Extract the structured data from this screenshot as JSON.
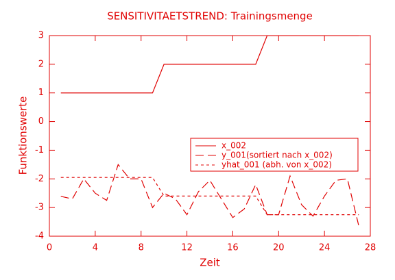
{
  "chart_data": {
    "type": "line",
    "title": "SENSITIVITAETSTREND: Trainingsmenge",
    "x_label": "Zeit",
    "y_label": "Funktionswerte",
    "x": [
      1,
      2,
      3,
      4,
      5,
      6,
      7,
      8,
      9,
      10,
      11,
      12,
      13,
      14,
      15,
      16,
      17,
      18,
      19,
      20,
      21,
      22,
      23,
      24,
      25,
      26,
      27
    ],
    "series": [
      {
        "name": "x_002",
        "color": "#e00000",
        "dash": "solid",
        "values": [
          1,
          1,
          1,
          1,
          1,
          1,
          1,
          1,
          1,
          2,
          2,
          2,
          2,
          2,
          2,
          2,
          2,
          2,
          3,
          3,
          3,
          3,
          3,
          3,
          3,
          3,
          3
        ]
      },
      {
        "name": "y_001(sortiert nach x_002)",
        "color": "#e00000",
        "dash": "long",
        "values": [
          -2.61,
          -2.7,
          -2.0,
          -2.5,
          -2.75,
          -1.5,
          -2.0,
          -2.0,
          -3.0,
          -2.5,
          -2.7,
          -3.25,
          -2.45,
          -2.05,
          -2.7,
          -3.35,
          -3.05,
          -2.2,
          -3.25,
          -3.25,
          -1.9,
          -2.9,
          -3.3,
          -2.6,
          -2.05,
          -2.0,
          -3.65
        ]
      },
      {
        "name": "yhat_001 (abh. von x_002)",
        "color": "#e00000",
        "dash": "short",
        "values": [
          -1.95,
          -1.95,
          -1.95,
          -1.95,
          -1.95,
          -1.95,
          -1.95,
          -1.95,
          -1.95,
          -2.6,
          -2.6,
          -2.6,
          -2.6,
          -2.6,
          -2.6,
          -2.6,
          -2.6,
          -2.6,
          -3.25,
          -3.25,
          -3.25,
          -3.25,
          -3.25,
          -3.25,
          -3.25,
          -3.25,
          -3.25
        ]
      }
    ],
    "xlim": [
      0,
      28
    ],
    "xticks": [
      0,
      4,
      8,
      12,
      16,
      20,
      24,
      28
    ],
    "ylim": [
      -4,
      3
    ],
    "yticks": [
      -4,
      -3,
      -2,
      -1,
      0,
      1,
      2,
      3
    ],
    "legend": "center-right"
  }
}
